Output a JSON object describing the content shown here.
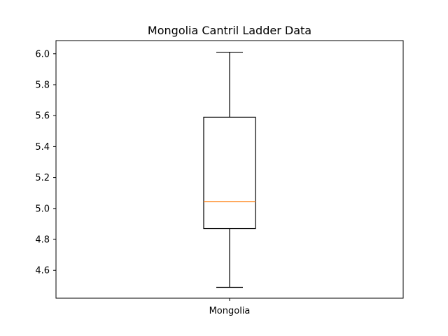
{
  "chart_data": {
    "type": "box",
    "title": "Mongolia Cantril Ladder Data",
    "xlabel": "",
    "ylabel": "",
    "categories": [
      "Mongolia"
    ],
    "series": [
      {
        "category": "Mongolia",
        "whisker_low": 4.49,
        "q1": 4.87,
        "median": 5.045,
        "q3": 5.59,
        "whisker_high": 6.01
      }
    ],
    "ylim": [
      4.42,
      6.085
    ],
    "yticks": [
      "4.6",
      "4.8",
      "5.0",
      "5.2",
      "5.4",
      "5.6",
      "5.8",
      "6.0"
    ],
    "grid": false,
    "colors": {
      "box": "#000000",
      "median": "#ff7f0e",
      "whisker": "#000000"
    }
  }
}
